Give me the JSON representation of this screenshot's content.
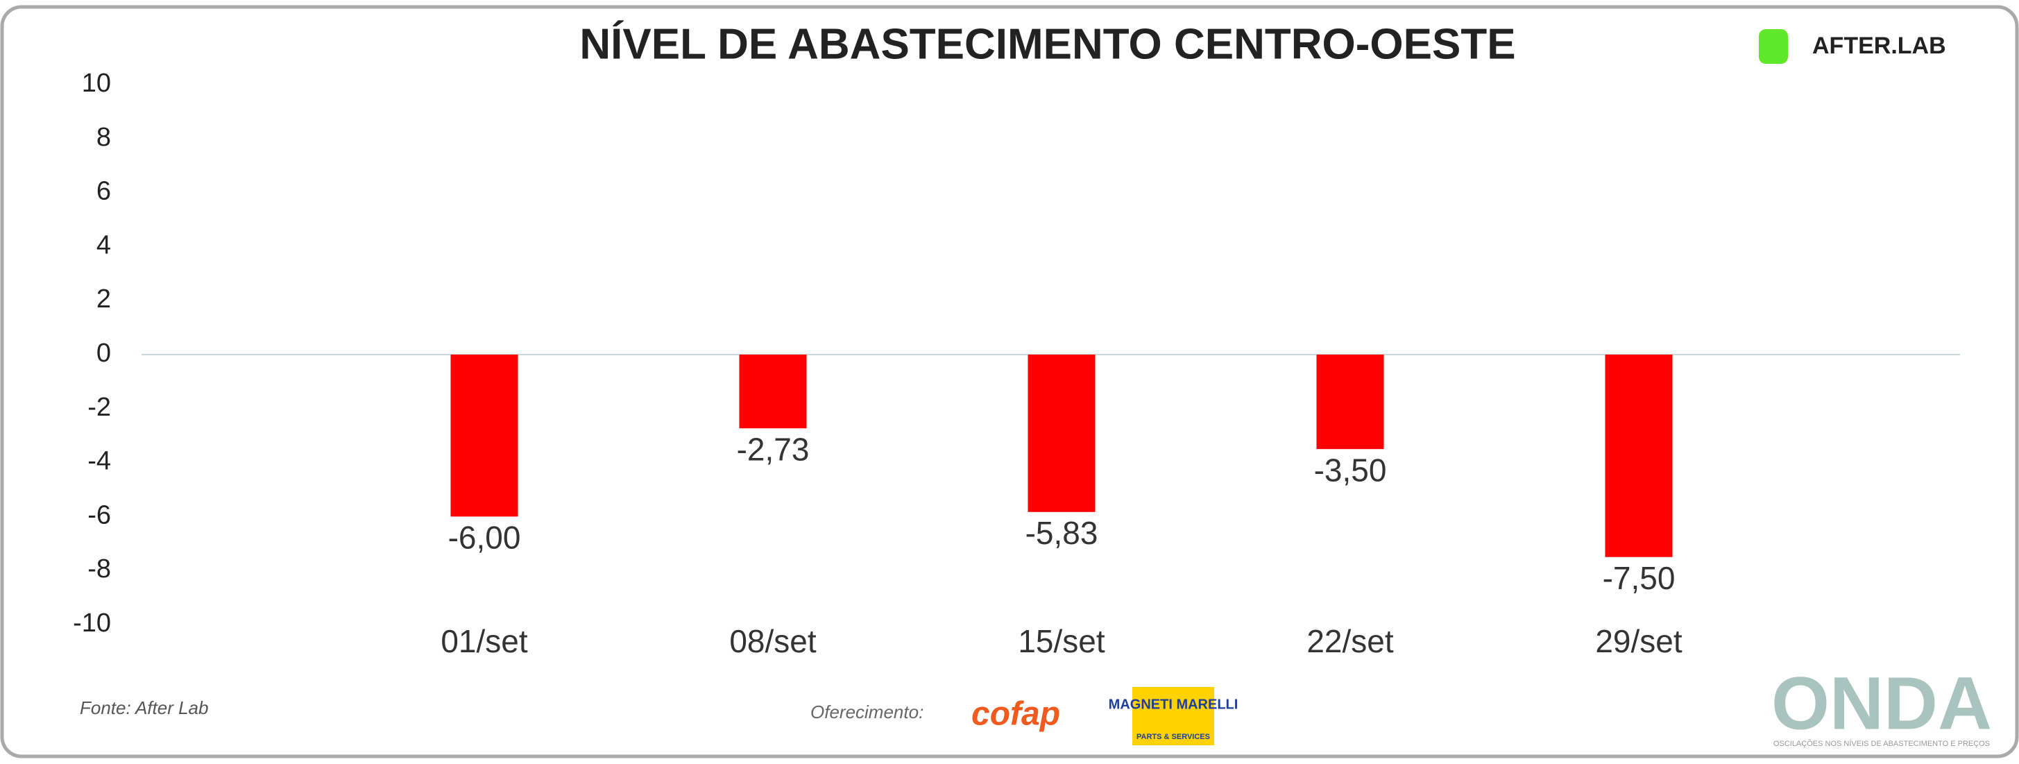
{
  "chart_data": {
    "type": "bar",
    "title": "NÍVEL DE ABASTECIMENTO CENTRO-OESTE",
    "categories": [
      "01/set",
      "08/set",
      "15/set",
      "22/set",
      "29/set"
    ],
    "values": [
      -6.0,
      -2.73,
      -5.83,
      -3.5,
      -7.5
    ],
    "value_labels": [
      "-6,00",
      "-2,73",
      "-5,83",
      "-3,50",
      "-7,50"
    ],
    "color": "#ff0000",
    "ylim": [
      -10,
      10
    ],
    "yticks": [
      -10,
      -8,
      -6,
      -4,
      -2,
      0,
      2,
      4,
      6,
      8,
      10
    ],
    "grid": false,
    "zero_line": true,
    "source": "Fonte: After Lab",
    "sponsor_label": "Oferecimento:",
    "brand": "AFTER.LAB",
    "sponsors": [
      "cofap",
      "MAGNETI MARELLI",
      "PARTS & SERVICES"
    ],
    "footer_logo": "ONDA",
    "footer_tagline": "OSCILAÇÕES NOS NÍVEIS DE ABASTECIMENTO E PREÇOS"
  }
}
